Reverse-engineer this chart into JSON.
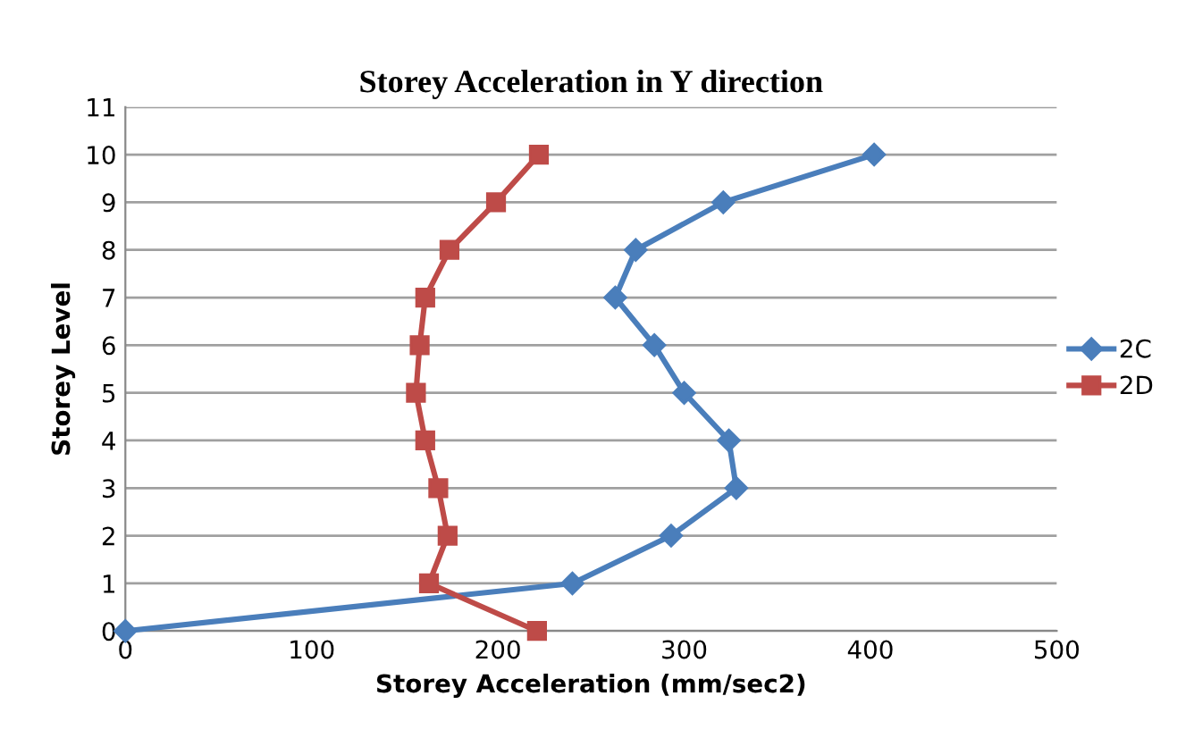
{
  "chart_data": {
    "type": "line",
    "title": "Storey Acceleration in Y direction",
    "xlabel": "Storey Acceleration (mm/sec2)",
    "ylabel": "Storey Level",
    "xlim": [
      0,
      500
    ],
    "xticks": [
      0,
      100,
      200,
      300,
      400,
      500
    ],
    "ylim": [
      0,
      11
    ],
    "yticks": [
      0,
      1,
      2,
      3,
      4,
      5,
      6,
      7,
      8,
      9,
      10,
      11
    ],
    "grid": "y",
    "legend": "right",
    "series": [
      {
        "name": "2C",
        "color": "#4a7ebb",
        "marker": "diamond",
        "x": [
          0,
          240,
          293,
          328,
          324,
          300,
          284,
          263,
          274,
          321,
          402
        ],
        "values": [
          0,
          1,
          2,
          3,
          4,
          5,
          6,
          7,
          8,
          9,
          10
        ]
      },
      {
        "name": "2D",
        "color": "#be4b48",
        "marker": "square",
        "x": [
          221,
          163,
          173,
          168,
          161,
          156,
          158,
          161,
          174,
          199,
          222
        ],
        "values": [
          0,
          1,
          2,
          3,
          4,
          5,
          6,
          7,
          8,
          9,
          10
        ]
      }
    ]
  }
}
